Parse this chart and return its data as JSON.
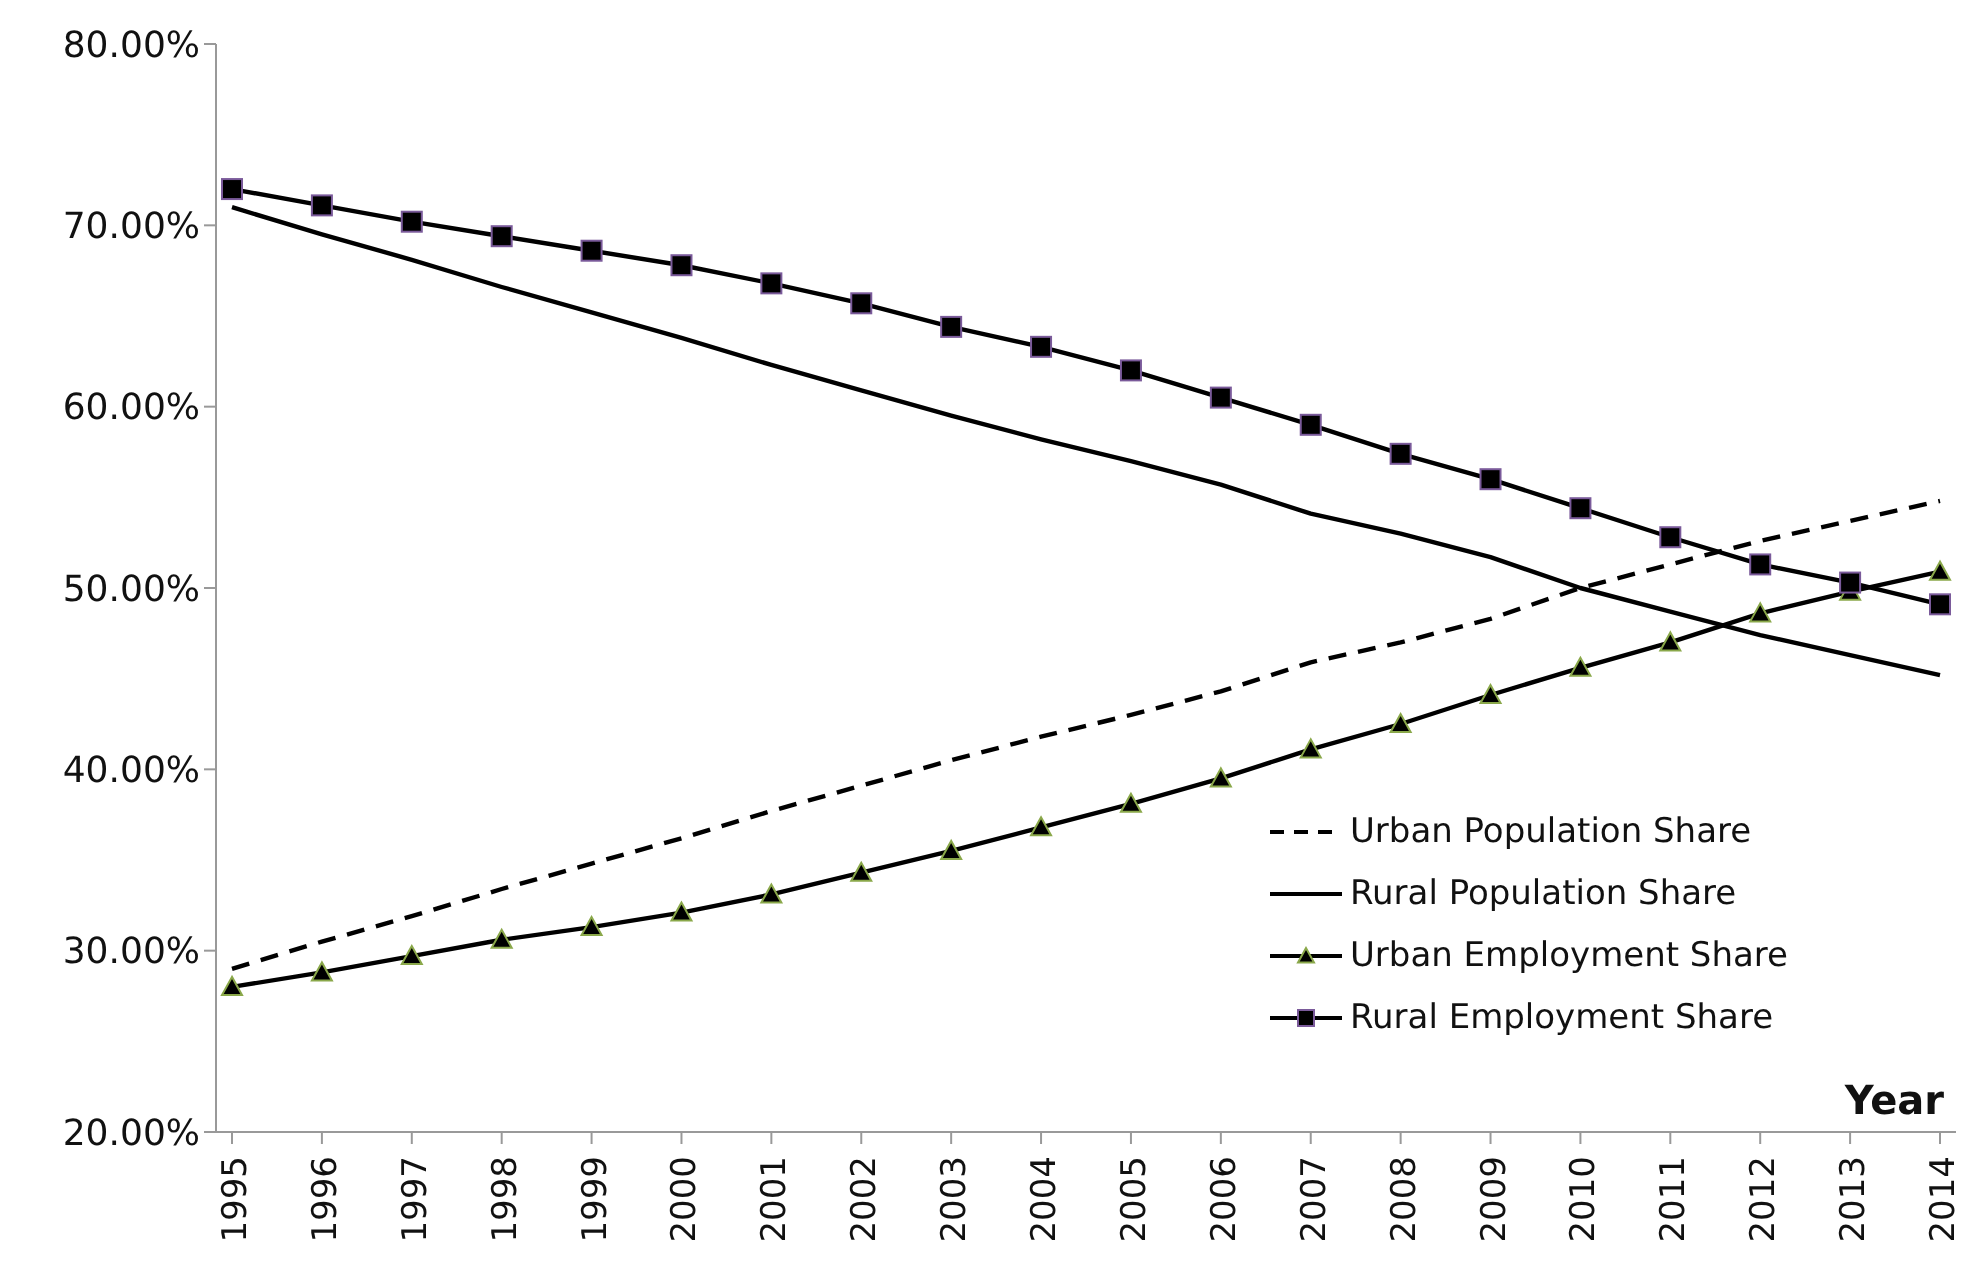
{
  "chart_data": {
    "type": "line",
    "xlabel": "Year",
    "categories": [
      "1995",
      "1996",
      "1997",
      "1998",
      "1999",
      "2000",
      "2001",
      "2002",
      "2003",
      "2004",
      "2005",
      "2006",
      "2007",
      "2008",
      "2009",
      "2010",
      "2011",
      "2012",
      "2013",
      "2014"
    ],
    "series": [
      {
        "name": "Urban Population Share",
        "color": "#000000",
        "line_style": "dashed",
        "marker": "none",
        "values": [
          29.0,
          30.5,
          31.9,
          33.4,
          34.8,
          36.2,
          37.7,
          39.1,
          40.5,
          41.8,
          43.0,
          44.3,
          45.9,
          47.0,
          48.3,
          50.0,
          51.3,
          52.6,
          53.7,
          54.8
        ]
      },
      {
        "name": "Rural Population Share",
        "color": "#000000",
        "line_style": "solid",
        "marker": "none",
        "values": [
          71.0,
          69.5,
          68.1,
          66.6,
          65.2,
          63.8,
          62.3,
          60.9,
          59.5,
          58.2,
          57.0,
          55.7,
          54.1,
          53.0,
          51.7,
          50.0,
          48.7,
          47.4,
          46.3,
          45.2
        ]
      },
      {
        "name": "Urban Employment Share",
        "color": "#000000",
        "line_style": "solid",
        "marker": "triangle",
        "values": [
          28.0,
          28.8,
          29.7,
          30.6,
          31.3,
          32.1,
          33.1,
          34.3,
          35.5,
          36.8,
          38.1,
          39.5,
          41.1,
          42.5,
          44.1,
          45.6,
          47.0,
          48.6,
          49.8,
          50.9
        ]
      },
      {
        "name": "Rural Employment Share",
        "color": "#000000",
        "line_style": "solid",
        "marker": "square",
        "values": [
          72.0,
          71.1,
          70.2,
          69.4,
          68.6,
          67.8,
          66.8,
          65.7,
          64.4,
          63.3,
          62.0,
          60.5,
          59.0,
          57.4,
          56.0,
          54.4,
          52.8,
          51.3,
          50.3,
          49.1
        ]
      }
    ],
    "ylim": [
      20,
      80
    ],
    "yticks": [
      {
        "value": 20,
        "label": "20.00%"
      },
      {
        "value": 30,
        "label": "30.00%"
      },
      {
        "value": 40,
        "label": "40.00%"
      },
      {
        "value": 50,
        "label": "50.00%"
      },
      {
        "value": 60,
        "label": "60.00%"
      },
      {
        "value": 70,
        "label": "70.00%"
      },
      {
        "value": 80,
        "label": "80.00%"
      }
    ],
    "grid": false,
    "legend": "bottom right"
  }
}
